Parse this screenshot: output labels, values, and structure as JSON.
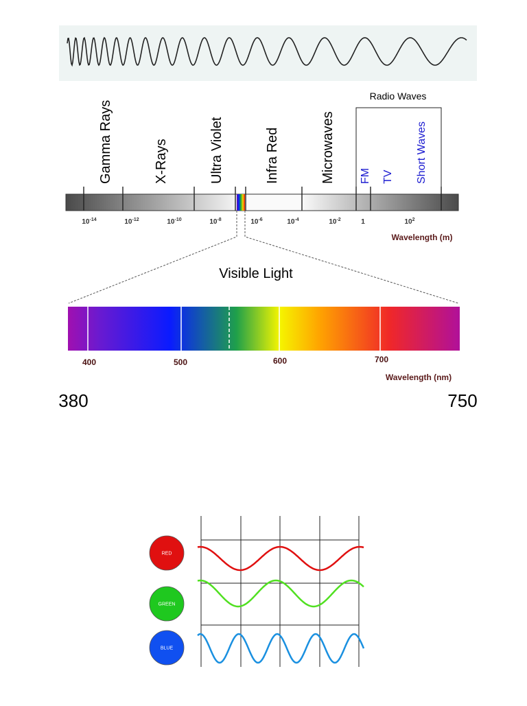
{
  "spectrum": {
    "bands": [
      "Gamma Rays",
      "X-Rays",
      "Ultra Violet",
      "Infra Red",
      "Microwaves"
    ],
    "radio": {
      "title": "Radio Waves",
      "sub": [
        "FM",
        "TV",
        "Short Waves"
      ]
    },
    "ticks": [
      {
        "base": "10",
        "exp": "-14"
      },
      {
        "base": "10",
        "exp": "-12"
      },
      {
        "base": "10",
        "exp": "-10"
      },
      {
        "base": "10",
        "exp": "-8"
      },
      {
        "base": "10",
        "exp": "-6"
      },
      {
        "base": "10",
        "exp": "-4"
      },
      {
        "base": "10",
        "exp": "-2"
      },
      {
        "base": "1"
      },
      {
        "base": "10",
        "exp": "2"
      }
    ],
    "axis_label": "Wavelength (m)"
  },
  "visible": {
    "title": "Visible Light",
    "ticks": [
      "400",
      "500",
      "600",
      "700"
    ],
    "axis_label": "Wavelength (nm)",
    "min_label": "380",
    "max_label": "750"
  },
  "waves": {
    "labels": [
      "RED",
      "GREEN",
      "BLUE"
    ]
  }
}
